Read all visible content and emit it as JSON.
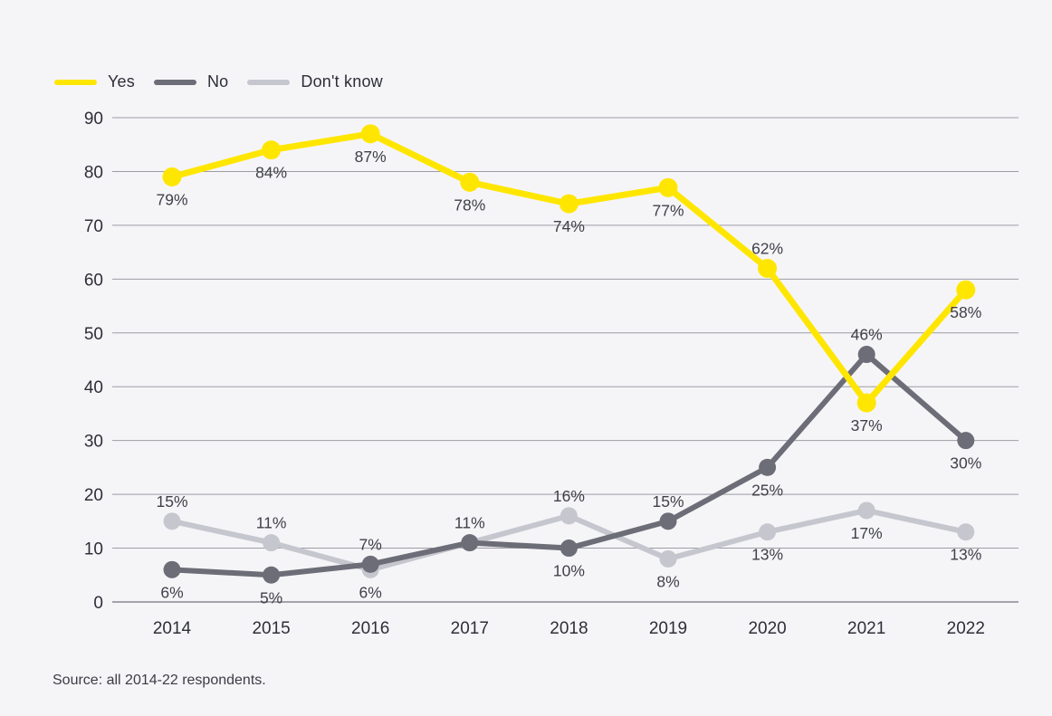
{
  "page": {
    "background_color": "#f5f5f8"
  },
  "legend": {
    "items": [
      {
        "label": "Yes",
        "color": "#ffe600"
      },
      {
        "label": "No",
        "color": "#6d6d78"
      },
      {
        "label": "Don't know",
        "color": "#c6c6cf"
      }
    ]
  },
  "source_note": "Source: all 2014-22 respondents.",
  "chart_data": {
    "type": "line",
    "title": "",
    "xlabel": "",
    "ylabel": "",
    "categories": [
      "2014",
      "2015",
      "2016",
      "2017",
      "2018",
      "2019",
      "2020",
      "2021",
      "2022"
    ],
    "ylim": [
      0,
      90
    ],
    "ytick_step": 10,
    "yticks": [
      0,
      10,
      20,
      30,
      40,
      50,
      60,
      70,
      80,
      90
    ],
    "grid": true,
    "legend_position": "top-left",
    "colors": {
      "gridline": "#9c9ca4",
      "baseline": "#8a8a94",
      "tick_text": "#2e2e38",
      "data_label_text": "#404049"
    },
    "series": [
      {
        "name": "Don't know",
        "color": "#c6c6cf",
        "values": [
          15,
          11,
          6,
          11,
          16,
          8,
          13,
          17,
          13
        ],
        "labels": [
          "15%",
          "11%",
          "6%",
          null,
          "16%",
          "8%",
          "13%",
          "17%",
          "13%"
        ],
        "label_pos": [
          "above",
          "above",
          "below",
          null,
          "above",
          "below",
          "below",
          "below",
          "below"
        ]
      },
      {
        "name": "No",
        "color": "#6d6d78",
        "values": [
          6,
          5,
          7,
          11,
          10,
          15,
          25,
          46,
          30
        ],
        "labels": [
          "6%",
          "5%",
          "7%",
          "11%",
          "10%",
          "15%",
          "25%",
          "46%",
          "30%"
        ],
        "label_pos": [
          "below",
          "below",
          "above",
          "above",
          "below",
          "above",
          "below",
          "above",
          "below"
        ]
      },
      {
        "name": "Yes",
        "color": "#ffe600",
        "values": [
          79,
          84,
          87,
          78,
          74,
          77,
          62,
          37,
          58
        ],
        "labels": [
          "79%",
          "84%",
          "87%",
          "78%",
          "74%",
          "77%",
          "62%",
          "37%",
          "58%"
        ],
        "label_pos": [
          "below",
          "below",
          "below",
          "below",
          "below",
          "below",
          "above",
          "below",
          "below"
        ]
      }
    ]
  }
}
